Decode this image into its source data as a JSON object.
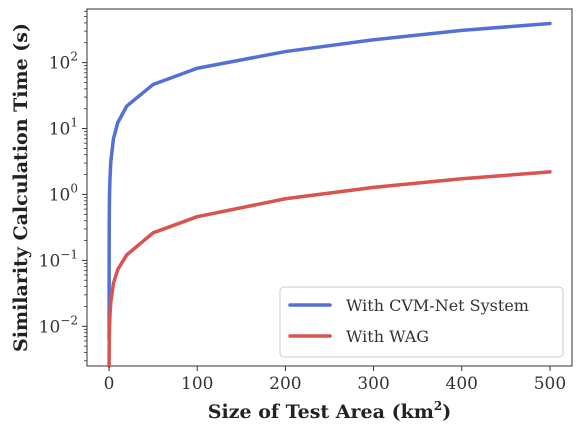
{
  "chart_data": {
    "type": "line",
    "xlabel": "Size of Test Area (km",
    "xlabel_sup": "2",
    "xlabel_end": ")",
    "ylabel": "Similarity Calculation Time (s)",
    "xlim": [
      -25,
      525
    ],
    "ylim": [
      0.0025,
      650
    ],
    "yscale": "log",
    "grid": false,
    "legend_position": "bottom-right",
    "x_ticks": [
      {
        "value": 0,
        "label": "0"
      },
      {
        "value": 100,
        "label": "100"
      },
      {
        "value": 200,
        "label": "200"
      },
      {
        "value": 300,
        "label": "300"
      },
      {
        "value": 400,
        "label": "400"
      },
      {
        "value": 500,
        "label": "500"
      }
    ],
    "y_ticks": [
      {
        "value": 0.01,
        "base": "10",
        "exp": "−2"
      },
      {
        "value": 0.1,
        "base": "10",
        "exp": "−1"
      },
      {
        "value": 1,
        "base": "10",
        "exp": "0"
      },
      {
        "value": 10,
        "base": "10",
        "exp": "1"
      },
      {
        "value": 100,
        "base": "10",
        "exp": "2"
      }
    ],
    "series": [
      {
        "name": "With CVM-Net System",
        "color": "#5470d6",
        "x": [
          0.01,
          0.2,
          0.5,
          1,
          2,
          5,
          10,
          20,
          50,
          100,
          200,
          300,
          400,
          500
        ],
        "y": [
          0.0064,
          0.36,
          0.93,
          1.66,
          3.16,
          7.0,
          12.4,
          21.8,
          46.6,
          82,
          147,
          222,
          308,
          392
        ]
      },
      {
        "name": "With WAG",
        "color": "#d9534f",
        "x": [
          0.05,
          0.2,
          0.5,
          1,
          2,
          5,
          10,
          20,
          50,
          100,
          200,
          300,
          400,
          500
        ],
        "y": [
          0.0025,
          0.0052,
          0.0093,
          0.0145,
          0.0232,
          0.045,
          0.073,
          0.121,
          0.262,
          0.46,
          0.86,
          1.28,
          1.73,
          2.2
        ]
      }
    ]
  }
}
